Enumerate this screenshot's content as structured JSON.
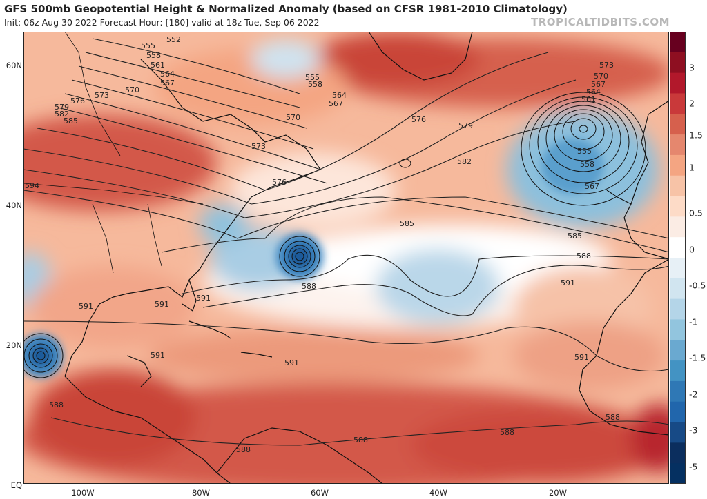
{
  "header": {
    "title": "GFS 500mb Geopotential Height & Normalized Anomaly (based on CFSR 1981-2010 Climatology)",
    "subtitle": "Init: 06z Aug 30 2022   Forecast Hour: [180]   valid at 18z Tue, Sep 06 2022",
    "source": "TROPICALTIDBITS.COM"
  },
  "axes": {
    "lat_labels": [
      "60N",
      "40N",
      "20N",
      "EQ"
    ],
    "lon_labels": [
      "100W",
      "80W",
      "60W",
      "40W",
      "20W"
    ]
  },
  "colorbar": {
    "ticks": [
      "3",
      "2",
      "1.5",
      "1",
      "0.5",
      "0",
      "-0.5",
      "-1",
      "-1.5",
      "-2",
      "-3",
      "-5"
    ],
    "colors": [
      "#67001f",
      "#8e0f21",
      "#b2182b",
      "#c9393a",
      "#d6604d",
      "#e5876e",
      "#f4a582",
      "#f7c3a7",
      "#fddbc7",
      "#fbece4",
      "#ffffff",
      "#e7f0f6",
      "#d1e5f0",
      "#b4d5e8",
      "#92c5de",
      "#6aa9d0",
      "#4393c3",
      "#2f78b5",
      "#2166ac",
      "#174a86",
      "#0b2e5e",
      "#053061"
    ],
    "accent_pos": "#c9393a",
    "accent_neg": "#3f88c2"
  },
  "contour_labels": [
    "552",
    "555",
    "558",
    "561",
    "564",
    "567",
    "570",
    "573",
    "576",
    "579",
    "582",
    "585",
    "588",
    "591",
    "594"
  ],
  "map_labels": {
    "nw": [
      "552",
      "555",
      "558",
      "561",
      "564",
      "567",
      "570",
      "573",
      "576",
      "579",
      "582",
      "585"
    ],
    "ne_low": [
      "573",
      "570",
      "567",
      "564",
      "561",
      "555",
      "558",
      "567"
    ],
    "mid": [
      "555",
      "558",
      "564",
      "567",
      "570",
      "576",
      "573",
      "576",
      "579",
      "582",
      "585",
      "585",
      "588",
      "588",
      "591",
      "594"
    ],
    "south": [
      "591",
      "591",
      "591",
      "591",
      "591",
      "591",
      "588",
      "588",
      "588",
      "588",
      "588"
    ]
  }
}
